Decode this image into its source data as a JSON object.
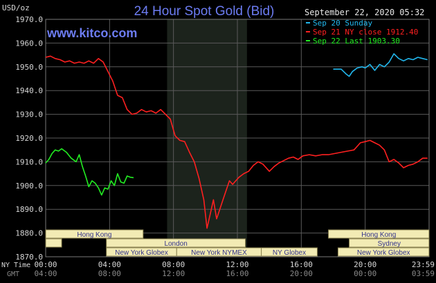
{
  "colors": {
    "background": "#000000",
    "plot_area": "#000000",
    "grid": "#5a5a5a",
    "night_shade": "#1c231c",
    "title": "#6c7cf2",
    "watermark": "#6c7cf2",
    "axis_text": "#d8d8d8",
    "sunday": "#22b8ee",
    "ny_close": "#ff2020",
    "last": "#22ee22",
    "session_fill": "#f2ebb4",
    "session_border": "#8a8250",
    "session_text": "#33338a"
  },
  "chart_data": {
    "type": "line",
    "title": "24 Hour Spot Gold (Bid)",
    "watermark": "www.kitco.com",
    "ylabel": "USD/oz",
    "ylim": [
      1870,
      1970
    ],
    "yticks": [
      "1970.0",
      "1960.0",
      "1950.0",
      "1940.0",
      "1930.0",
      "1920.0",
      "1910.0",
      "1900.0",
      "1890.0",
      "1880.0",
      "1870.0"
    ],
    "x_range_hours": [
      0,
      24
    ],
    "grid": true,
    "timestamp": "September 22, 2020 05:32",
    "legend_position": "top-right",
    "legend": [
      {
        "label": "Sep 20 Sunday",
        "color": "#22b8ee"
      },
      {
        "label": "Sep 21 NY close 1912.40",
        "color": "#ff2020"
      },
      {
        "label": "Sep 22 Last 1903.30",
        "color": "#22ee22"
      }
    ],
    "x_axis": {
      "row1_label": "NY Time",
      "row2_label": "GMT",
      "row1_ticks": [
        "00:00",
        "04:00",
        "08:00",
        "12:00",
        "16:00",
        "20:00",
        "23:59"
      ],
      "row2_ticks": [
        "04:00",
        "08:00",
        "12:00",
        "16:00",
        "20:00",
        "00:00",
        "03:59"
      ]
    },
    "sessions": [
      {
        "label": "Hong Kong",
        "start": 0,
        "end": 6.1,
        "row": 0
      },
      {
        "label": "Hong Kong",
        "start": 17.7,
        "end": 24,
        "row": 0
      },
      {
        "label": "London",
        "start": 3.8,
        "end": 12.5,
        "row": 1
      },
      {
        "label": "",
        "start": 0,
        "end": 1.0,
        "row": 1
      },
      {
        "label": "Sydney",
        "start": 19.0,
        "end": 24,
        "row": 1
      },
      {
        "label": "New York Globex",
        "start": 3.8,
        "end": 8.2,
        "row": 2
      },
      {
        "label": "New York NYMEX",
        "start": 8.2,
        "end": 13.5,
        "row": 2
      },
      {
        "label": "NY Globex",
        "start": 13.5,
        "end": 17.0,
        "row": 2
      },
      {
        "label": "New York Globex",
        "start": 18.3,
        "end": 24,
        "row": 2
      }
    ],
    "series": [
      {
        "name": "Sep 20 Sunday",
        "color": "#22b8ee",
        "x": [
          18.0,
          18.5,
          18.8,
          19.0,
          19.2,
          19.5,
          19.8,
          20.0,
          20.3,
          20.6,
          20.9,
          21.2,
          21.5,
          21.8,
          22.1,
          22.4,
          22.7,
          23.0,
          23.3,
          23.6,
          23.9
        ],
        "y": [
          1949.0,
          1949.0,
          1947.0,
          1946.0,
          1948.0,
          1949.5,
          1950.0,
          1949.5,
          1951.0,
          1948.5,
          1951.0,
          1950.0,
          1952.0,
          1955.5,
          1953.5,
          1952.5,
          1953.5,
          1953.0,
          1954.0,
          1953.5,
          1953.0
        ]
      },
      {
        "name": "Sep 21 NY close 1912.40",
        "color": "#ff2020",
        "x": [
          0,
          0.3,
          0.6,
          0.9,
          1.2,
          1.5,
          1.8,
          2.1,
          2.4,
          2.7,
          3.0,
          3.3,
          3.6,
          3.9,
          4.2,
          4.5,
          4.8,
          5.1,
          5.4,
          5.7,
          6.0,
          6.3,
          6.6,
          6.9,
          7.2,
          7.5,
          7.8,
          8.1,
          8.4,
          8.7,
          9.0,
          9.3,
          9.6,
          9.9,
          10.1,
          10.3,
          10.5,
          10.7,
          10.9,
          11.1,
          11.3,
          11.5,
          11.7,
          11.9,
          12.1,
          12.4,
          12.7,
          13.0,
          13.3,
          13.6,
          14.0,
          14.3,
          14.6,
          14.9,
          15.2,
          15.5,
          15.8,
          16.1,
          16.5,
          16.9,
          17.3,
          17.7,
          18.1,
          18.5,
          18.9,
          19.3,
          19.7,
          20.0,
          20.3,
          20.6,
          20.9,
          21.2,
          21.5,
          21.8,
          22.1,
          22.4,
          22.7,
          23.0,
          23.3,
          23.6,
          23.9
        ],
        "y": [
          1954.0,
          1954.5,
          1953.5,
          1953.0,
          1952.0,
          1952.5,
          1951.5,
          1952.0,
          1951.5,
          1952.5,
          1951.5,
          1953.5,
          1952.0,
          1948.0,
          1944.0,
          1938.0,
          1937.0,
          1932.0,
          1930.0,
          1930.5,
          1932.0,
          1931.0,
          1931.5,
          1930.5,
          1932.0,
          1930.0,
          1928.0,
          1921.0,
          1919.0,
          1918.5,
          1914.0,
          1910.0,
          1903.0,
          1894.0,
          1882.0,
          1888.0,
          1894.0,
          1886.0,
          1890.0,
          1894.0,
          1898.0,
          1902.0,
          1900.5,
          1902.0,
          1903.5,
          1905.0,
          1906.0,
          1908.5,
          1910.0,
          1909.0,
          1906.0,
          1908.0,
          1909.5,
          1910.5,
          1911.5,
          1912.0,
          1911.0,
          1912.5,
          1913.0,
          1912.5,
          1913.0,
          1913.0,
          1913.5,
          1914.0,
          1914.5,
          1915.0,
          1918.0,
          1918.5,
          1919.0,
          1918.0,
          1917.0,
          1915.0,
          1910.0,
          1911.0,
          1909.5,
          1907.5,
          1908.5,
          1909.0,
          1910.0,
          1911.5,
          1911.5
        ]
      },
      {
        "name": "Sep 22 Last 1903.30",
        "color": "#22ee22",
        "x": [
          0,
          0.2,
          0.4,
          0.6,
          0.8,
          1.0,
          1.3,
          1.6,
          1.9,
          2.1,
          2.3,
          2.5,
          2.7,
          2.9,
          3.1,
          3.3,
          3.5,
          3.7,
          3.9,
          4.1,
          4.3,
          4.5,
          4.7,
          4.9,
          5.1,
          5.3,
          5.5
        ],
        "y": [
          1909.5,
          1911.0,
          1913.5,
          1915.0,
          1914.5,
          1915.5,
          1914.0,
          1911.5,
          1910.0,
          1913.0,
          1908.0,
          1904.0,
          1899.5,
          1902.0,
          1901.0,
          1899.0,
          1896.0,
          1899.0,
          1898.5,
          1902.0,
          1900.0,
          1905.0,
          1901.5,
          1901.0,
          1904.0,
          1903.5,
          1903.3
        ]
      }
    ]
  }
}
